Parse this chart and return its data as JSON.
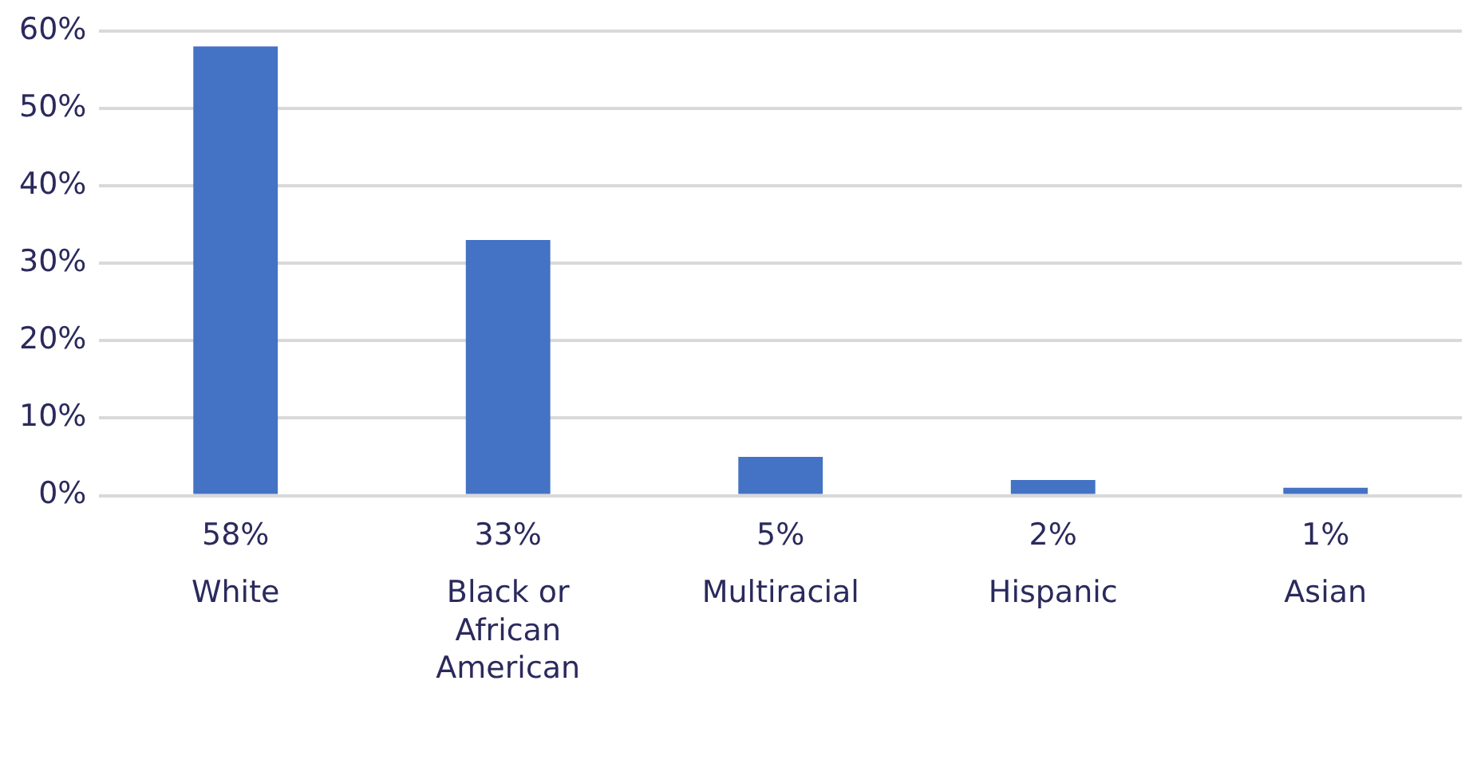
{
  "chart_data": {
    "type": "bar",
    "categories": [
      "White",
      "Black or African American",
      "Multiracial",
      "Hispanic",
      "Asian"
    ],
    "values": [
      58,
      33,
      5,
      2,
      1
    ],
    "color": "#4472c4",
    "value_labels": [
      "58%",
      "33%",
      "5%",
      "2%",
      "1%"
    ],
    "ylim": [
      0,
      60
    ],
    "yticks": [
      {
        "value": 0,
        "label": "0%"
      },
      {
        "value": 10,
        "label": "10%"
      },
      {
        "value": 20,
        "label": "20%"
      },
      {
        "value": 30,
        "label": "30%"
      },
      {
        "value": 40,
        "label": "40%"
      },
      {
        "value": 50,
        "label": "50%"
      },
      {
        "value": 60,
        "label": "60%"
      }
    ],
    "grid": "y",
    "legend": false
  }
}
